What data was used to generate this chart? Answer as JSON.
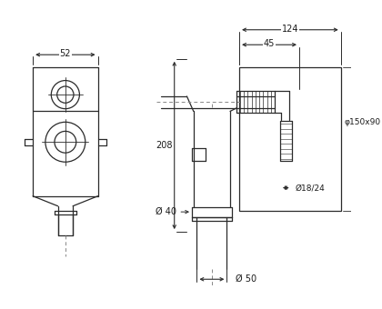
{
  "bg_color": "#ffffff",
  "line_color": "#2a2a2a",
  "dim_color": "#2a2a2a",
  "dash_color": "#888888",
  "annotations": {
    "dim_52": "52",
    "dim_124": "124",
    "dim_45": "45",
    "dim_208": "208",
    "dim_40": "Ø 40",
    "dim_50": "Ø 50",
    "dim_150x90": "φ150x90",
    "dim_18_24": "Ø18/24"
  },
  "fig_width": 4.2,
  "fig_height": 3.4,
  "dpi": 100
}
